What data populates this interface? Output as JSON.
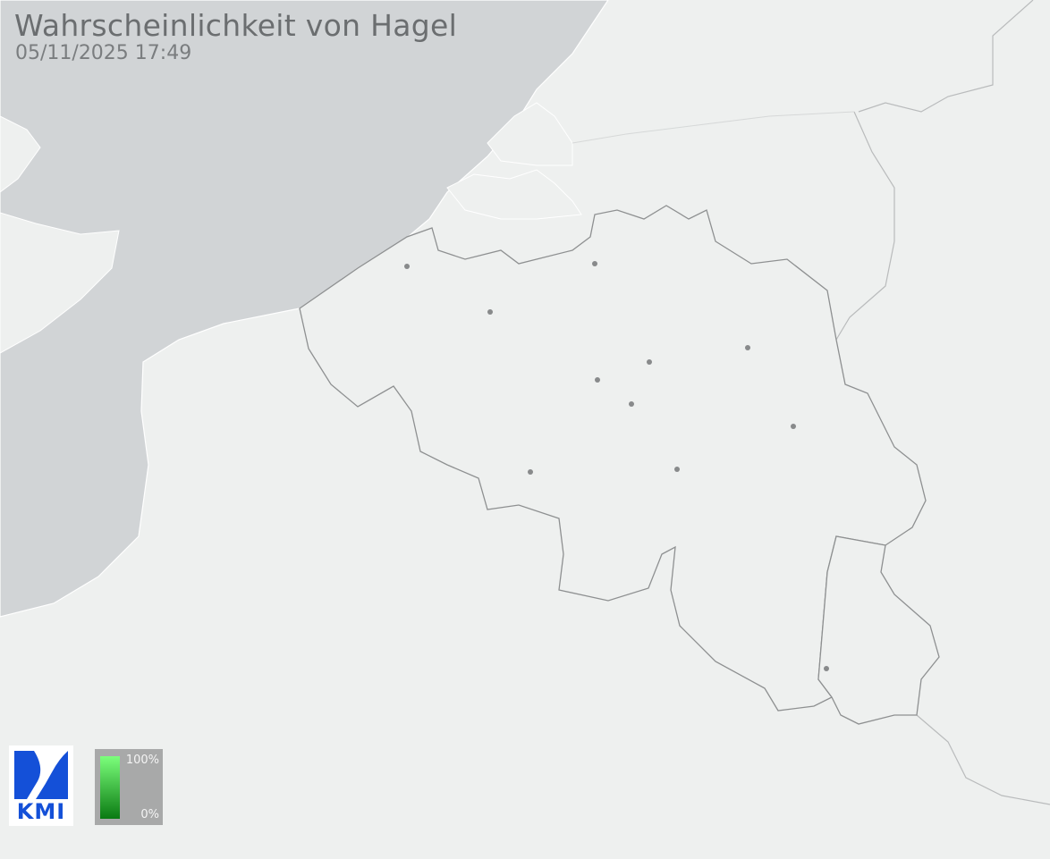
{
  "header": {
    "title": "Wahrscheinlichkeit von Hagel",
    "timestamp": "05/11/2025 17:49"
  },
  "logo": {
    "text": "KMI"
  },
  "legend": {
    "max_label": "100%",
    "min_label": "0%",
    "color_high": "#7cff7c",
    "color_low": "#0a7a12"
  },
  "colors": {
    "land": "#eef0ef",
    "sea": "#d1d4d6",
    "border": "#8e9091",
    "city": "#888a8b"
  }
}
